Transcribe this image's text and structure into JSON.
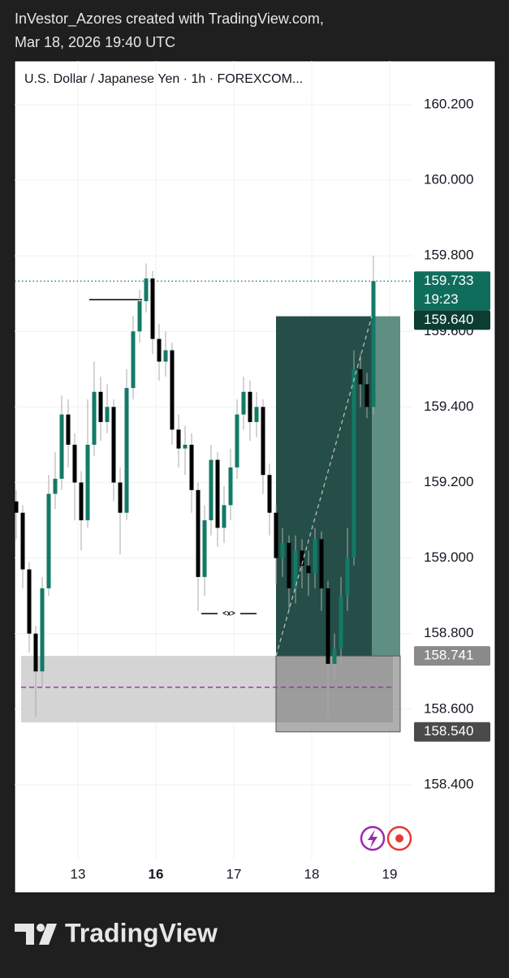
{
  "header": {
    "line1": "InVestor_Azores created with TradingView.com,",
    "line2": "Mar 18, 2026 19:40 UTC"
  },
  "chart_data": {
    "type": "candlestick",
    "title": "U.S. Dollar / Japanese Yen · 1h · FOREXCOM...",
    "x": [
      -19,
      -17,
      -15,
      -13,
      -11,
      -9,
      -7,
      -5,
      -3,
      -1,
      1,
      3,
      5,
      7,
      9,
      11,
      13,
      15,
      17,
      19,
      21,
      23,
      25,
      27,
      29,
      31,
      33,
      35,
      37,
      39,
      41,
      43,
      45,
      47,
      49,
      51,
      53,
      55,
      57,
      59,
      61,
      63,
      65,
      67,
      69,
      71,
      73,
      75,
      77,
      79,
      81,
      83,
      85,
      87,
      89,
      91
    ],
    "open": [
      159.15,
      159.12,
      158.97,
      158.8,
      158.7,
      158.92,
      159.17,
      159.21,
      159.38,
      159.3,
      159.2,
      159.1,
      159.3,
      159.44,
      159.36,
      159.4,
      159.2,
      159.12,
      159.45,
      159.6,
      159.68,
      159.74,
      159.58,
      159.52,
      159.55,
      159.34,
      159.29,
      159.3,
      159.18,
      158.95,
      159.1,
      159.26,
      159.08,
      159.14,
      159.24,
      159.38,
      159.44,
      159.36,
      159.4,
      159.22,
      159.12,
      159.0,
      159.04,
      158.92,
      159.02,
      158.98,
      158.96,
      159.05,
      158.92,
      158.72,
      158.76,
      158.9,
      159.0,
      159.5,
      159.46,
      159.4
    ],
    "high": [
      159.18,
      159.14,
      158.99,
      158.82,
      158.95,
      159.22,
      159.28,
      159.43,
      159.42,
      159.33,
      159.23,
      159.42,
      159.52,
      159.48,
      159.46,
      159.42,
      159.24,
      159.5,
      159.64,
      159.71,
      159.78,
      159.76,
      159.62,
      159.6,
      159.57,
      159.38,
      159.35,
      159.33,
      159.2,
      159.14,
      159.3,
      159.28,
      159.19,
      159.29,
      159.42,
      159.48,
      159.47,
      159.44,
      159.42,
      159.25,
      159.14,
      159.08,
      159.06,
      159.06,
      159.05,
      159.02,
      159.08,
      159.07,
      158.94,
      158.8,
      158.95,
      159.08,
      159.55,
      159.54,
      159.49,
      159.8
    ],
    "low": [
      159.05,
      158.92,
      158.75,
      158.58,
      158.66,
      158.9,
      159.13,
      159.18,
      159.24,
      159.1,
      159.02,
      159.08,
      159.27,
      159.31,
      159.33,
      159.15,
      159.01,
      159.1,
      159.42,
      159.57,
      159.65,
      159.54,
      159.47,
      159.48,
      159.3,
      159.24,
      159.22,
      159.12,
      158.86,
      158.9,
      159.06,
      159.03,
      159.04,
      159.1,
      159.21,
      159.34,
      159.31,
      159.32,
      159.17,
      159.06,
      158.93,
      158.95,
      158.86,
      158.88,
      158.92,
      158.9,
      158.92,
      158.86,
      158.58,
      158.68,
      158.72,
      158.86,
      158.98,
      159.4,
      159.37,
      159.38
    ],
    "close": [
      159.12,
      158.97,
      158.8,
      158.7,
      158.92,
      159.17,
      159.21,
      159.38,
      159.3,
      159.2,
      159.1,
      159.3,
      159.44,
      159.36,
      159.4,
      159.2,
      159.12,
      159.45,
      159.6,
      159.68,
      159.74,
      159.58,
      159.52,
      159.55,
      159.34,
      159.29,
      159.3,
      159.18,
      158.95,
      159.1,
      159.26,
      159.08,
      159.14,
      159.24,
      159.38,
      159.44,
      159.36,
      159.4,
      159.22,
      159.12,
      159.0,
      159.04,
      158.92,
      159.02,
      158.98,
      158.96,
      159.05,
      158.92,
      158.72,
      158.76,
      158.9,
      159.0,
      159.5,
      159.46,
      159.4,
      159.733
    ],
    "up_color": "#127a66",
    "down_color": "#000000",
    "xlim": [
      -19.5,
      103
    ],
    "xticks": [
      {
        "value": 0,
        "label": "13"
      },
      {
        "value": 24,
        "label": "16",
        "bold": true
      },
      {
        "value": 48,
        "label": "17"
      },
      {
        "value": 72,
        "label": "18"
      },
      {
        "value": 96,
        "label": "19"
      }
    ],
    "ylim": [
      158.2,
      160.316
    ],
    "yticks": [
      {
        "value": 160.2,
        "label": "160.200"
      },
      {
        "value": 160.0,
        "label": "160.000"
      },
      {
        "value": 159.8,
        "label": "159.800"
      },
      {
        "value": 159.6,
        "label": "159.600"
      },
      {
        "value": 159.4,
        "label": "159.400"
      },
      {
        "value": 159.2,
        "label": "159.200"
      },
      {
        "value": 159.0,
        "label": "159.000"
      },
      {
        "value": 158.8,
        "label": "158.800"
      },
      {
        "value": 158.6,
        "label": "158.600"
      },
      {
        "value": 158.4,
        "label": "158.400"
      }
    ],
    "grid": true,
    "price_labels": [
      {
        "value": 159.733,
        "label": "159.733",
        "sublabel": "19:23",
        "color": "#0f6e5b"
      },
      {
        "value": 159.64,
        "label": "159.640",
        "color": "#0b3d32"
      },
      {
        "value": 158.741,
        "label": "158.741",
        "color": "#8a8a8a"
      },
      {
        "value": 158.54,
        "label": "158.540",
        "color": "#4a4a4a"
      }
    ],
    "last_price_line": 159.733,
    "position": {
      "x": [
        61,
        99.25
      ],
      "split": 90.5,
      "target": 159.64,
      "entry": 158.741,
      "stop": 158.54
    },
    "zone": {
      "x": [
        -17.5,
        97
      ],
      "top": 158.741,
      "bottom": 158.565
    },
    "midline": {
      "x": [
        -17.5,
        97
      ],
      "value": 158.658
    },
    "high_line": {
      "x": [
        3.5,
        19.75
      ],
      "value": 159.684
    },
    "marker": {
      "x": [
        38,
        55
      ],
      "value": 158.853,
      "label": "<x>"
    }
  },
  "footer": {
    "brand": "TradingView"
  }
}
